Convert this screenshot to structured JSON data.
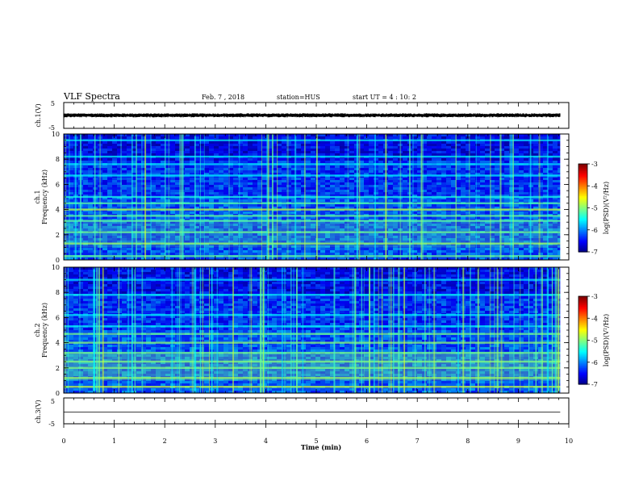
{
  "header": {
    "title": "VLF Spectra",
    "date": "Feb. 7 , 2018",
    "station": "station=HUS",
    "start": "start UT = 4 : 10: 2"
  },
  "chart_data": [
    {
      "type": "line",
      "panel": "ch1-waveform",
      "ylabel": "ch.1(V)",
      "ylim": [
        -5,
        5
      ],
      "yticks": [
        "5",
        "-5"
      ],
      "xlim": [
        0,
        10
      ],
      "value_approx": 0
    },
    {
      "type": "heatmap",
      "panel": "ch1-spectrogram",
      "ylabel": "ch.1 Frequency (kHz)",
      "ylabel_line1": "ch.1",
      "ylabel_line2": "Frequency (kHz)",
      "ylim": [
        0,
        10
      ],
      "yticks": [
        "0",
        "2",
        "4",
        "6",
        "8",
        "10"
      ],
      "xlim": [
        0,
        10
      ],
      "colorbar": {
        "label": "log(PSD)(V²/Hz)",
        "range": [
          -7,
          -3
        ],
        "ticks": [
          "-3",
          "-4",
          "-5",
          "-6",
          "-7"
        ]
      },
      "bands_khz": [
        0.3,
        1.3,
        2.2,
        3.1,
        3.5,
        4.0,
        4.5,
        5.0,
        6.7,
        7.6,
        8.2,
        9.5
      ]
    },
    {
      "type": "heatmap",
      "panel": "ch2-spectrogram",
      "ylabel": "ch.2 Frequency (kHz)",
      "ylabel_line1": "ch.2",
      "ylabel_line2": "Frequency (kHz)",
      "ylim": [
        0,
        10
      ],
      "yticks": [
        "0",
        "2",
        "4",
        "6",
        "8",
        "10"
      ],
      "xlim": [
        0,
        10
      ],
      "colorbar": {
        "label": "log(PSD)(V²/Hz)",
        "range": [
          -7,
          -3
        ],
        "ticks": [
          "-3",
          "-4",
          "-5",
          "-6",
          "-7"
        ]
      },
      "bands_khz": [
        0.5,
        1.2,
        2.0,
        2.5,
        3.2,
        4.0,
        4.7,
        5.3,
        6.2,
        7.8,
        9.0
      ]
    },
    {
      "type": "line",
      "panel": "ch3-waveform",
      "ylabel": "ch.3(V)",
      "ylim": [
        -5,
        5
      ],
      "yticks": [
        "5",
        "-5"
      ],
      "xlim": [
        0,
        10
      ],
      "value_approx": -0.5
    }
  ],
  "xaxis": {
    "label": "Time (min)",
    "range": [
      0,
      10
    ],
    "ticks": [
      "0",
      "1",
      "2",
      "3",
      "4",
      "5",
      "6",
      "7",
      "8",
      "9",
      "10"
    ],
    "data_end_min": 9.83
  },
  "colors": {
    "background_dark": "#000a5a",
    "background_blue": "#0a28c8",
    "band_cyan": "#20c8e0",
    "band_green": "#30e060"
  }
}
